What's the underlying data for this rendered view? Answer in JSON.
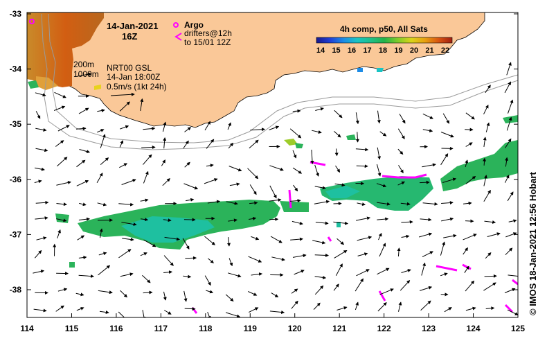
{
  "header": {
    "date": "14-Jan-2021",
    "hour": "16Z"
  },
  "legend": {
    "argo_label": "Argo",
    "drifters_label": "drifters@12h",
    "drifters_range": "to 15/01 12Z",
    "argo_color": "#ff00ff",
    "drifter_color": "#ff00ff"
  },
  "contours": {
    "c200": "200m",
    "c1000": "1000m"
  },
  "currents": {
    "product": "NRT00 GSL",
    "time": "14-Jan 18:00Z",
    "scale": "0.5m/s (1kt 24h)"
  },
  "colorbar": {
    "title": "4h comp, p50, All Sats",
    "ticks": [
      "14",
      "15",
      "16",
      "17",
      "18",
      "19",
      "20",
      "21",
      "22"
    ],
    "colors": [
      "#1a1a8c",
      "#1f3fd6",
      "#1c8ce6",
      "#19c4c4",
      "#1ec08a",
      "#22b34a",
      "#7fcc2a",
      "#d9d41a",
      "#e8a010",
      "#d85510",
      "#a01e10"
    ]
  },
  "axes": {
    "x_ticks": [
      "114",
      "115",
      "116",
      "117",
      "118",
      "119",
      "120",
      "121",
      "122",
      "123",
      "124",
      "125"
    ],
    "y_ticks": [
      "-33",
      "-34",
      "-35",
      "-36",
      "-37",
      "-38"
    ]
  },
  "land_color": "#fac898",
  "credit": "© IMOS 18-Jan-2021 12:56 Hobart"
}
